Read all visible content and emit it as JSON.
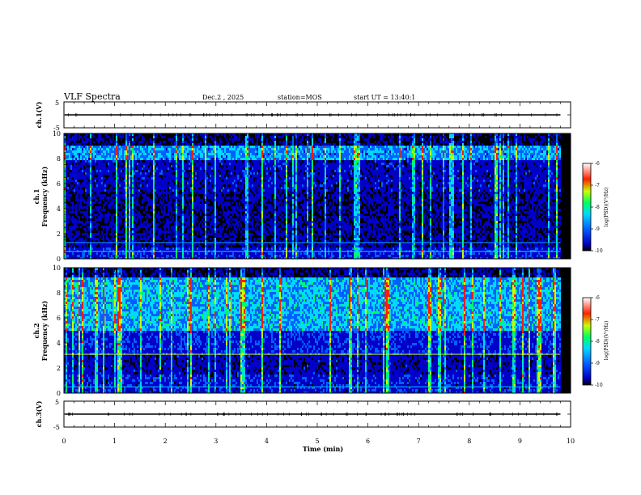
{
  "header": {
    "title": "VLF Spectra",
    "date": "Dec.2 , 2025",
    "station": "station=MOS",
    "start": "start UT = 13:40:1"
  },
  "chart_data": [
    {
      "type": "line",
      "ylabel": "ch.1(V)",
      "ylim": [
        -5,
        5
      ],
      "yticks": [
        "5",
        "-5"
      ],
      "xlim": [
        0,
        10
      ],
      "series": [
        {
          "values": [
            0,
            0
          ]
        }
      ]
    },
    {
      "type": "heatmap",
      "ylabel": "ch.1\nFrequency (kHz)",
      "ylabel_line1": "ch.1",
      "ylabel_line2": "Frequency (kHz)",
      "ylim": [
        0,
        10
      ],
      "yticks": [
        "0",
        "2",
        "4",
        "6",
        "8",
        "10"
      ],
      "xlim": [
        0,
        10
      ],
      "data_end_min": 9.8,
      "colorbar": {
        "label": "log(PSD)(V²/Hz)",
        "range": [
          -10,
          -6
        ],
        "ticks": [
          "-6",
          "-7",
          "-8",
          "-9",
          "-10"
        ]
      }
    },
    {
      "type": "heatmap",
      "ylabel": "ch.2\nFrequency (kHz)",
      "ylabel_line1": "ch.2",
      "ylabel_line2": "Frequency (kHz)",
      "ylim": [
        0,
        10
      ],
      "yticks": [
        "0",
        "2",
        "4",
        "6",
        "8",
        "10"
      ],
      "xlim": [
        0,
        10
      ],
      "data_end_min": 9.8,
      "colorbar": {
        "label": "log(PSD)(V²/Hz)",
        "range": [
          -10,
          -6
        ],
        "ticks": [
          "-6",
          "-7",
          "-8",
          "-9",
          "-10"
        ]
      }
    },
    {
      "type": "line",
      "ylabel": "ch.3(V)",
      "ylim": [
        -5,
        5
      ],
      "yticks": [
        "5",
        "-5"
      ],
      "xlim": [
        0,
        10
      ],
      "xlabel": "Time (min)",
      "xticks": [
        "0",
        "1",
        "2",
        "3",
        "4",
        "5",
        "6",
        "7",
        "8",
        "9",
        "10"
      ],
      "series": [
        {
          "values": [
            0,
            0
          ]
        }
      ]
    }
  ],
  "colors": {
    "background": "#ffffff",
    "axes": "#000000",
    "colormap": [
      "#000000",
      "#0000c8",
      "#0060ff",
      "#00d8ff",
      "#00ff60",
      "#c8ff00",
      "#ff2000",
      "#ffffff"
    ]
  }
}
